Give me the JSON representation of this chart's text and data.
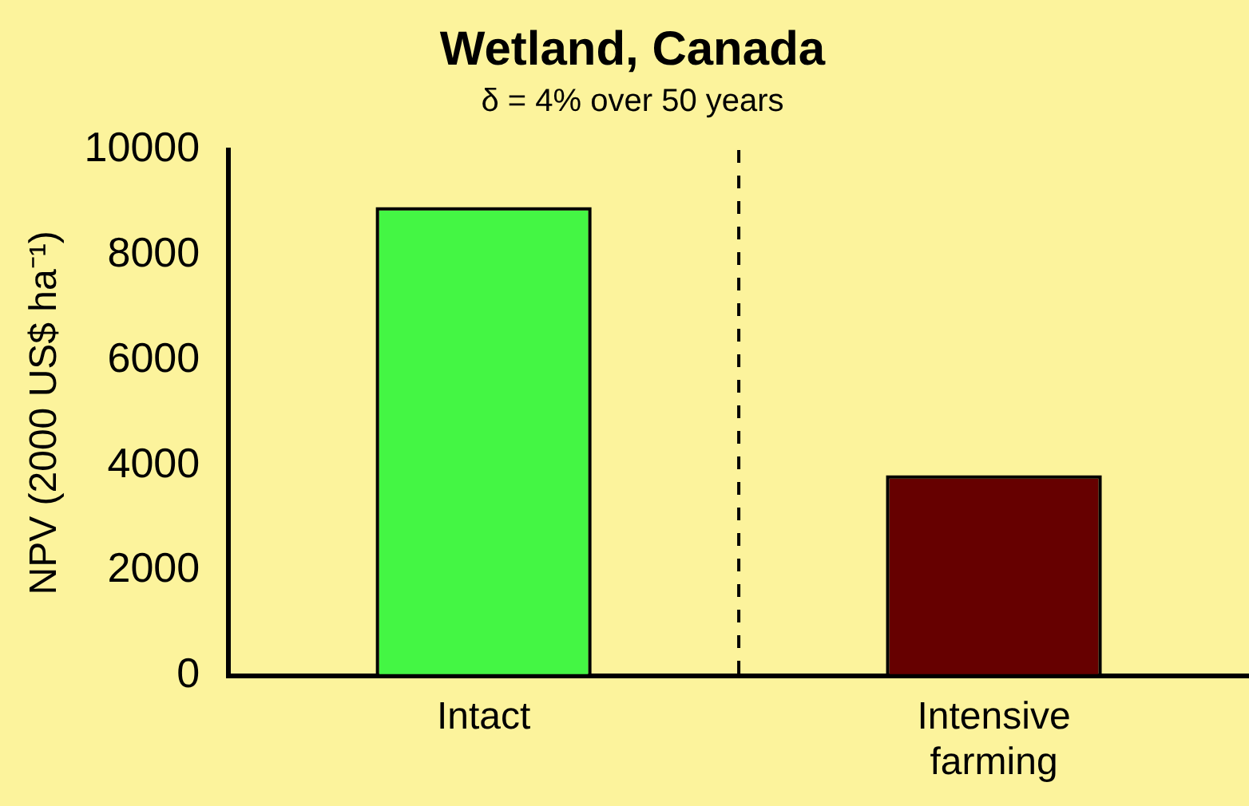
{
  "chart_data": {
    "type": "bar",
    "title": "Wetland, Canada",
    "subtitle": "δ = 4% over 50 years",
    "ylabel": "NPV (2000 US$ ha⁻¹)",
    "categories": [
      "Intact",
      "Intensive farming"
    ],
    "values": [
      8850,
      3750
    ],
    "colors": [
      "#44f644",
      "#660000"
    ],
    "ylim": [
      0,
      10000
    ],
    "yticks": [
      0,
      2000,
      4000,
      6000,
      8000,
      10000
    ],
    "grid": false,
    "legend": false
  }
}
